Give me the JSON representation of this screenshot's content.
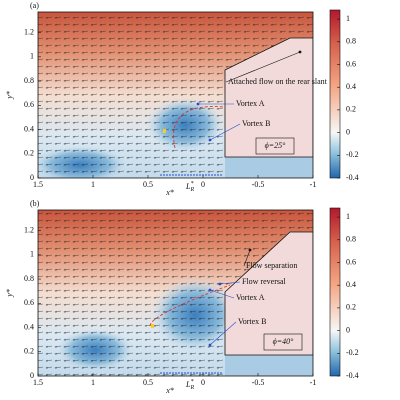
{
  "chart_data": [
    {
      "type": "field",
      "panel_label": "(a)",
      "xlabel": "x*",
      "ylabel": "y*",
      "xlim": [
        1.5,
        -1
      ],
      "xticks": [
        1.5,
        1,
        0.5,
        0,
        -0.5,
        -1
      ],
      "ylim": [
        0,
        1.37
      ],
      "yticks": [
        0,
        0.2,
        0.4,
        0.6,
        0.8,
        1,
        1.2
      ],
      "colorbar": {
        "lim": [
          -0.4,
          1.08
        ],
        "ticks": [
          -0.4,
          -0.2,
          0,
          0.2,
          0.4,
          0.6,
          0.8,
          1
        ]
      },
      "length_label": {
        "base": "L",
        "sup": "*",
        "sub": "R"
      },
      "annotations": [
        "Attached flow on the rear slant",
        "Vortex A",
        "Vortex B"
      ],
      "angle_label": "ϕ=25°"
    },
    {
      "type": "field",
      "panel_label": "(b)",
      "xlabel": "x*",
      "ylabel": "y*",
      "xlim": [
        1.5,
        -1
      ],
      "xticks": [
        1.5,
        1,
        0.5,
        0,
        -0.5,
        -1
      ],
      "ylim": [
        0,
        1.37
      ],
      "yticks": [
        0,
        0.2,
        0.4,
        0.6,
        0.8,
        1,
        1.2
      ],
      "colorbar": {
        "lim": [
          -0.4,
          1.08
        ],
        "ticks": [
          -0.4,
          -0.2,
          0,
          0.2,
          0.4,
          0.6,
          0.8,
          1
        ]
      },
      "length_label": {
        "base": "L",
        "sup": "*",
        "sub": "R"
      },
      "annotations": [
        "Flow separation",
        "Flow reversal",
        "Vortex A",
        "Vortex B"
      ],
      "angle_label": "ϕ=40°"
    }
  ]
}
